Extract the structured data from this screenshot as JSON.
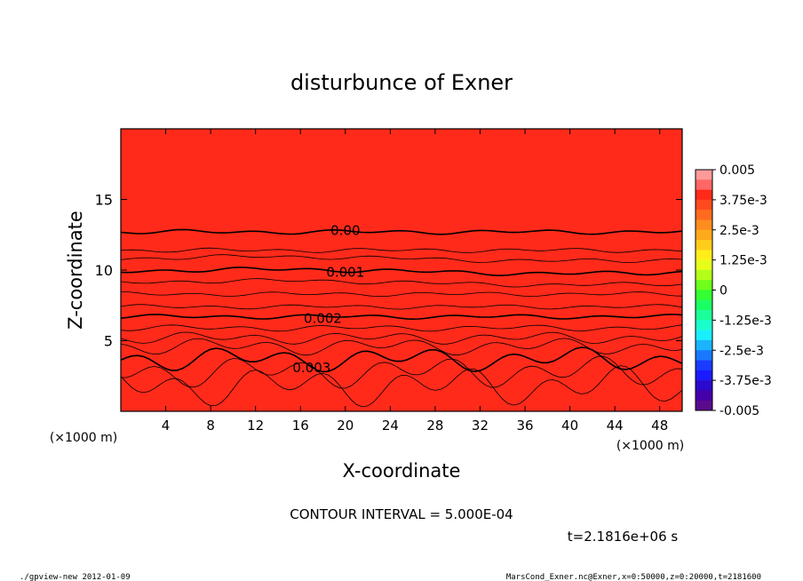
{
  "chart_data": {
    "type": "contour",
    "title": "disturbunce of Exner",
    "xlabel": "X-coordinate",
    "ylabel": "Z-coordinate",
    "x_unit_left": "(×1000 m)",
    "x_unit_right": "(×1000 m)",
    "xlim": [
      0,
      50
    ],
    "ylim": [
      0,
      20
    ],
    "x_ticks": [
      4,
      8,
      12,
      16,
      20,
      24,
      28,
      32,
      36,
      40,
      44,
      48
    ],
    "y_ticks": [
      5,
      10,
      15
    ],
    "contour_interval_text": "CONTOUR INTERVAL = 5.000E-04",
    "time_text": "t=2.1816e+06 s",
    "contour_labels": [
      {
        "text": "0.00",
        "level": 0.0,
        "z": 12.7
      },
      {
        "text": "0.001",
        "level": 0.001,
        "z": 9.9
      },
      {
        "text": "0.002",
        "level": 0.002,
        "z": 6.5
      },
      {
        "text": "0.003",
        "level": 0.003,
        "z": 3.5
      }
    ],
    "colorbar": {
      "min": -0.005,
      "max": 0.005,
      "tick_labels": [
        "0.005",
        "3.75e-3",
        "2.5e-3",
        "1.25e-3",
        "0",
        "-1.25e-3",
        "-2.5e-3",
        "-3.75e-3",
        "-0.005"
      ],
      "colors_top_to_bottom": [
        "#ff9a9a",
        "#ff6666",
        "#ff2a1a",
        "#ff4a1e",
        "#ff6a1e",
        "#ff8c1e",
        "#ffaa1a",
        "#ffcc1a",
        "#ffee1a",
        "#e6ff1a",
        "#b4ff1a",
        "#6eff1a",
        "#33ff33",
        "#1aff66",
        "#1aff99",
        "#1affcc",
        "#1aeeff",
        "#1ab4ff",
        "#1a78ff",
        "#1a3cff",
        "#1a1aff",
        "#2a0acc",
        "#4400aa",
        "#5a0a8c"
      ]
    },
    "field_levels_bottom_to_top": [
      {
        "z": 0.0,
        "color": "#ff2a1a"
      },
      {
        "z": 1.0,
        "color": "#ff3a1c"
      },
      {
        "z": 2.0,
        "color": "#ff4a1e"
      },
      {
        "z": 3.0,
        "color": "#ff5f1e"
      },
      {
        "z": 3.8,
        "color": "#ff7a1e"
      },
      {
        "z": 4.5,
        "color": "#ff961e"
      },
      {
        "z": 5.2,
        "color": "#ffb21a"
      },
      {
        "z": 6.0,
        "color": "#ffd21a"
      },
      {
        "z": 6.8,
        "color": "#f4f01a"
      },
      {
        "z": 7.6,
        "color": "#d8ff1a"
      },
      {
        "z": 8.5,
        "color": "#b4ff1a"
      },
      {
        "z": 9.5,
        "color": "#8cff1a"
      },
      {
        "z": 10.8,
        "color": "#5aff1e"
      },
      {
        "z": 12.2,
        "color": "#33ff33"
      },
      {
        "z": 14.0,
        "color": "#1aff55"
      },
      {
        "z": 20.0,
        "color": "#1aff55"
      }
    ],
    "contour_z_levels": [
      1.8,
      2.8,
      3.7,
      4.6,
      5.2,
      5.9,
      6.7,
      7.4,
      8.3,
      9.1,
      9.9,
      10.8,
      11.4,
      12.7
    ]
  },
  "footer": {
    "left": "./gpview-new  2012-01-09",
    "right": "MarsCond_Exner.nc@Exner,x=0:50000,z=0:20000,t=2181600"
  }
}
